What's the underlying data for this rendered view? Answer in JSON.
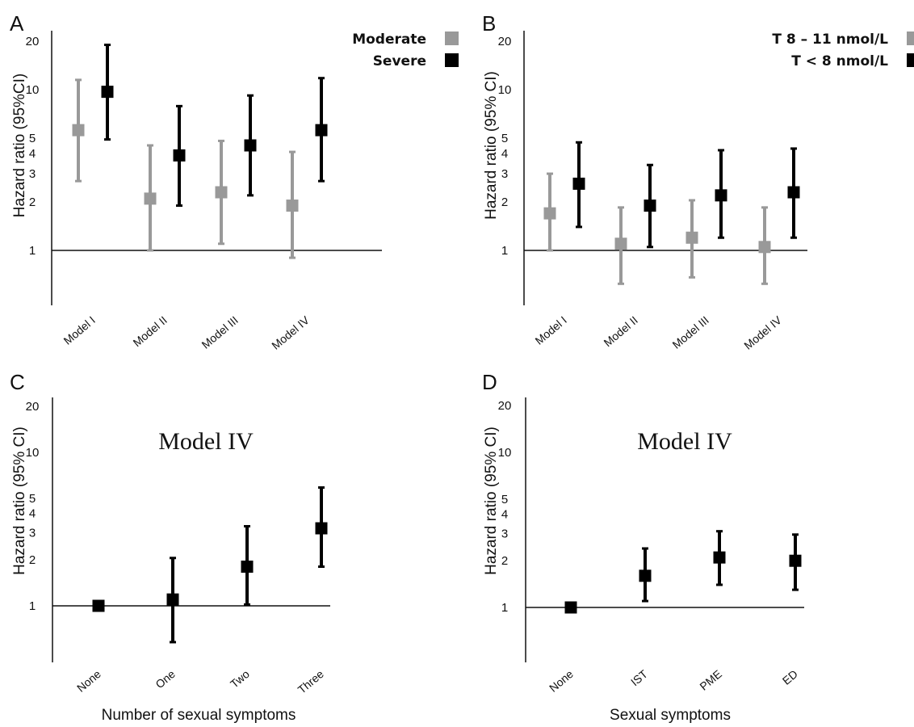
{
  "chart_data": [
    {
      "panel": "A",
      "type": "scatter",
      "ylabel": "Hazard ratio (95%CI)",
      "xlabel": "",
      "title": "",
      "y_scale": "log",
      "ylim": [
        0.5,
        20
      ],
      "yticks": [
        "1",
        "2",
        "3",
        "4",
        "5",
        "10",
        "20"
      ],
      "categories": [
        "Model I",
        "Model II",
        "Model III",
        "Model IV"
      ],
      "legend_position": "top-right",
      "series": [
        {
          "name": "Moderate",
          "color": "#999999",
          "values": [
            5.6,
            2.1,
            2.3,
            1.9
          ],
          "lower": [
            2.7,
            1.0,
            1.1,
            0.9
          ],
          "upper": [
            11.5,
            4.5,
            4.8,
            4.1
          ]
        },
        {
          "name": "Severe",
          "color": "#000000",
          "values": [
            9.7,
            3.9,
            4.5,
            5.6
          ],
          "lower": [
            4.9,
            1.9,
            2.2,
            2.7
          ],
          "upper": [
            19.0,
            7.9,
            9.2,
            11.8
          ]
        }
      ]
    },
    {
      "panel": "B",
      "type": "scatter",
      "ylabel": "Hazard ratio (95% CI)",
      "xlabel": "",
      "title": "",
      "y_scale": "log",
      "ylim": [
        0.5,
        20
      ],
      "yticks": [
        "1",
        "2",
        "3",
        "4",
        "5",
        "10",
        "20"
      ],
      "categories": [
        "Model I",
        "Model II",
        "Model III",
        "Model IV"
      ],
      "legend_position": "top-right",
      "series": [
        {
          "name": "T 8 – 11 nmol/L",
          "color": "#999999",
          "values": [
            1.7,
            1.1,
            1.2,
            1.05
          ],
          "lower": [
            1.0,
            0.62,
            0.68,
            0.62
          ],
          "upper": [
            3.0,
            1.85,
            2.05,
            1.85
          ]
        },
        {
          "name": "T < 8 nmol/L",
          "color": "#000000",
          "values": [
            2.6,
            1.9,
            2.2,
            2.3
          ],
          "lower": [
            1.4,
            1.05,
            1.2,
            1.2
          ],
          "upper": [
            4.7,
            3.4,
            4.2,
            4.3
          ]
        }
      ]
    },
    {
      "panel": "C",
      "type": "scatter",
      "title": "Model IV",
      "ylabel": "Hazard ratio (95% CI)",
      "xlabel": "Number of sexual symptoms",
      "y_scale": "log",
      "ylim": [
        0.5,
        20
      ],
      "yticks": [
        "1",
        "2",
        "3",
        "4",
        "5",
        "10",
        "20"
      ],
      "categories": [
        "None",
        "One",
        "Two",
        "Three"
      ],
      "series": [
        {
          "color": "#000000",
          "values": [
            1.0,
            1.1,
            1.8,
            3.2
          ],
          "lower": [
            null,
            0.58,
            1.02,
            1.8
          ],
          "upper": [
            null,
            2.05,
            3.3,
            5.9
          ]
        }
      ]
    },
    {
      "panel": "D",
      "type": "scatter",
      "title": "Model IV",
      "ylabel": "Hazard ratio (95% CI)",
      "xlabel": "Sexual symptoms",
      "y_scale": "log",
      "ylim": [
        0.5,
        20
      ],
      "yticks": [
        "1",
        "2",
        "3",
        "4",
        "5",
        "10",
        "20"
      ],
      "categories": [
        "None",
        "IST",
        "PME",
        "ED"
      ],
      "series": [
        {
          "color": "#000000",
          "values": [
            1.0,
            1.6,
            2.1,
            2.0
          ],
          "lower": [
            null,
            1.1,
            1.4,
            1.3
          ],
          "upper": [
            null,
            2.4,
            3.1,
            2.95
          ]
        }
      ]
    }
  ]
}
